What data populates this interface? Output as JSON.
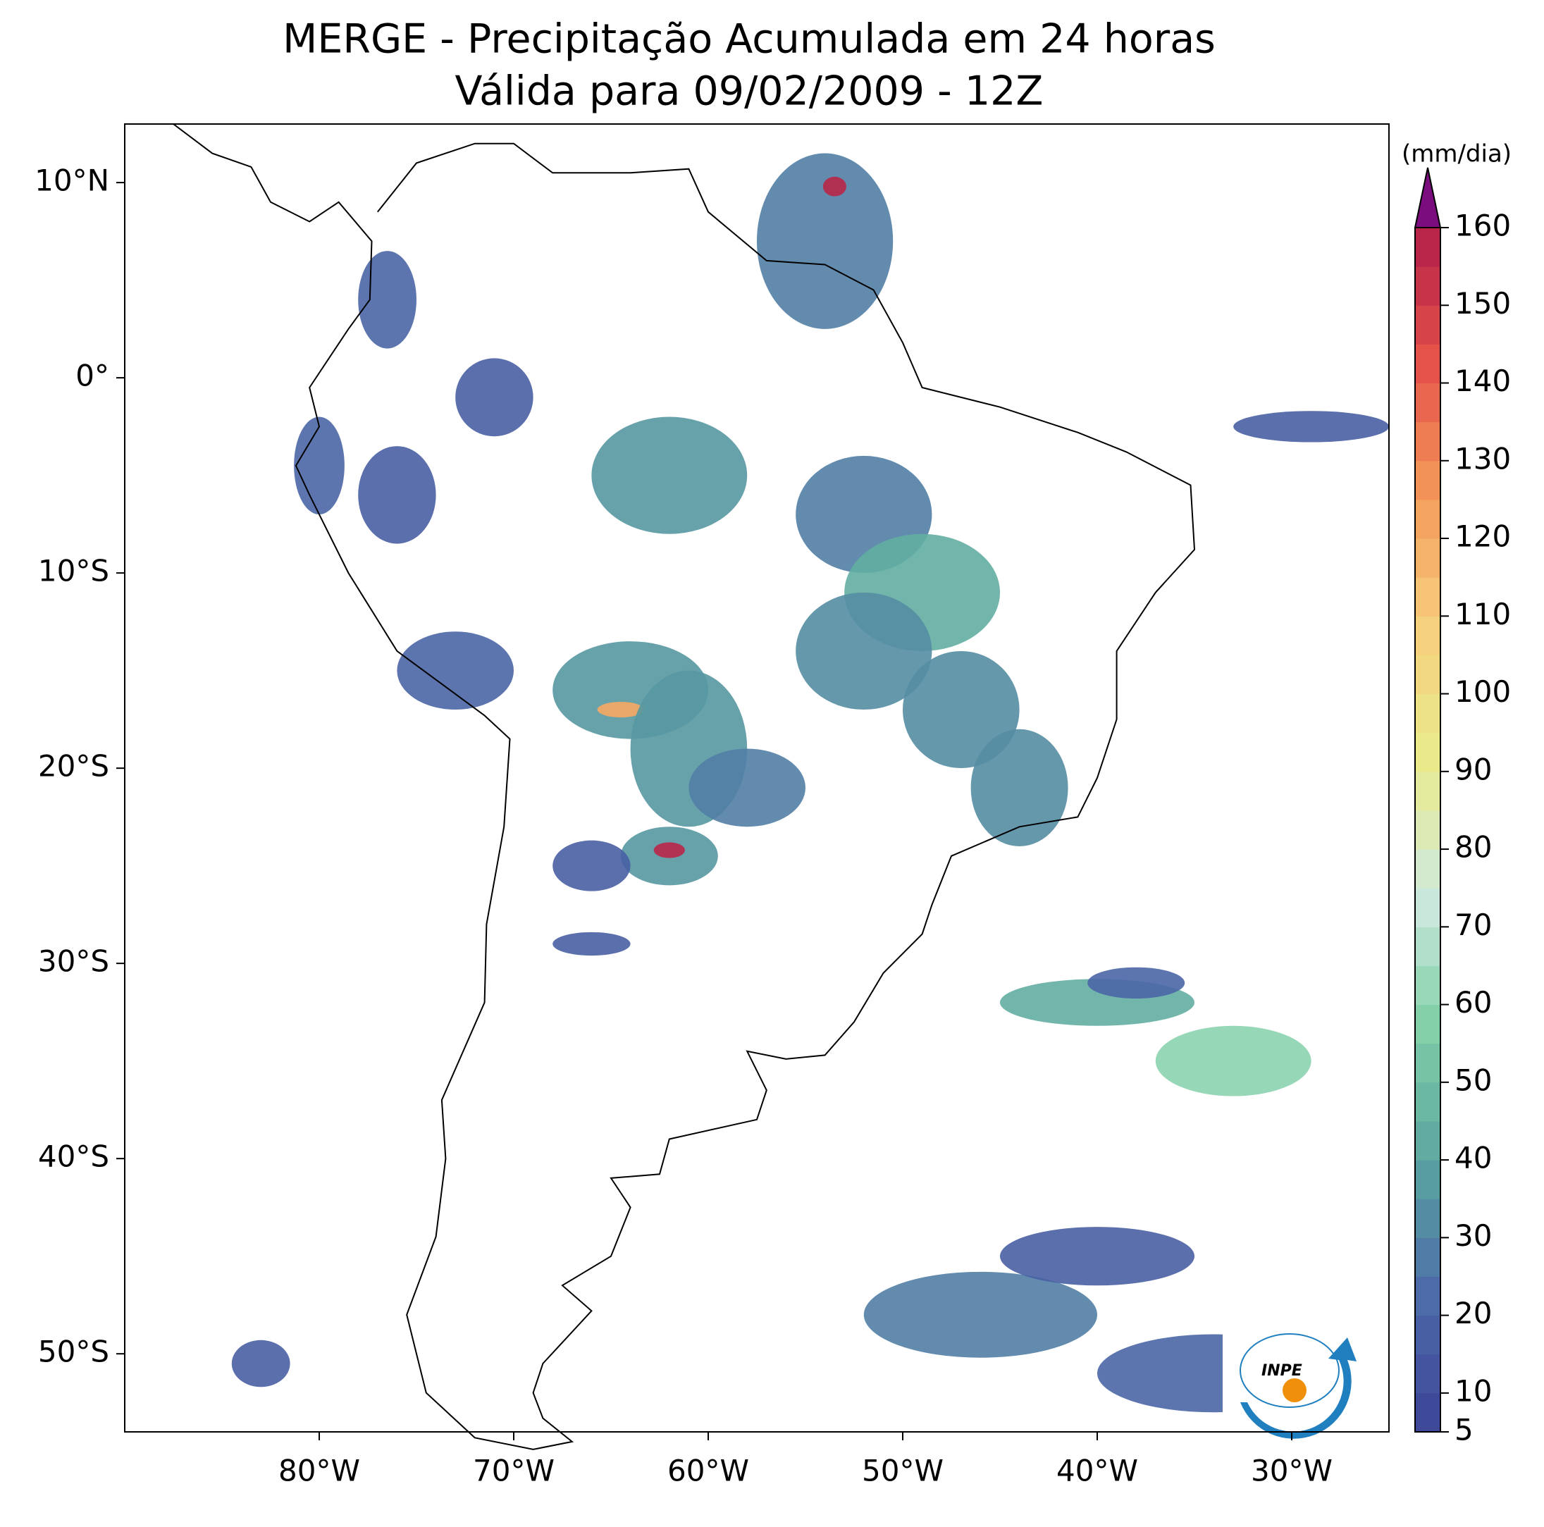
{
  "title": "MERGE - Precipitação Acumulada em 24 horas",
  "subtitle": "Válida para 09/02/2009 - 12Z",
  "map": {
    "xlim": [
      -90,
      -25
    ],
    "ylim": [
      -54,
      13
    ],
    "xticks": [
      {
        "value": -80,
        "label": "80°W"
      },
      {
        "value": -70,
        "label": "70°W"
      },
      {
        "value": -60,
        "label": "60°W"
      },
      {
        "value": -50,
        "label": "50°W"
      },
      {
        "value": -40,
        "label": "40°W"
      },
      {
        "value": -30,
        "label": "30°W"
      }
    ],
    "yticks": [
      {
        "value": 10,
        "label": "10°N"
      },
      {
        "value": 0,
        "label": "0°"
      },
      {
        "value": -10,
        "label": "10°S"
      },
      {
        "value": -20,
        "label": "20°S"
      },
      {
        "value": -30,
        "label": "30°S"
      },
      {
        "value": -40,
        "label": "40°S"
      },
      {
        "value": -50,
        "label": "50°S"
      }
    ]
  },
  "colorbar": {
    "label": "(mm/dia)",
    "lim": [
      5,
      160
    ],
    "ticks": [
      5,
      10,
      20,
      30,
      40,
      50,
      60,
      70,
      80,
      90,
      100,
      110,
      120,
      130,
      140,
      150,
      160
    ],
    "colors": [
      "#3d4396",
      "#4c6aa8",
      "#5aa3a0",
      "#7fcfa6",
      "#cfe9e0",
      "#e9ec8c",
      "#f7d07c",
      "#f59a5a",
      "#e4514a",
      "#b01d48"
    ],
    "extend_color": "#7b0d7e"
  },
  "logo": "INPE"
}
